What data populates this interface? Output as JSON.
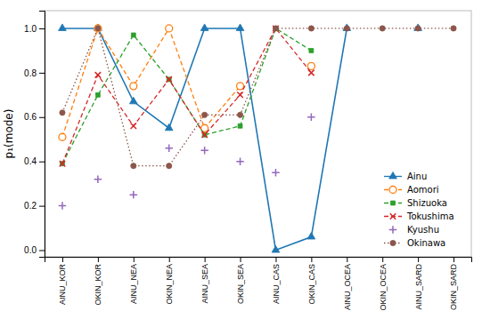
{
  "chart_data": {
    "type": "line",
    "y_label": "p₁(mode)",
    "categories": [
      "AINU_KOR",
      "OKIN_KOR",
      "AINU_NEA",
      "OKIN_NEA",
      "AINU_SEA",
      "OKIN_SEA",
      "AINU_CAS",
      "OKIN_CAS",
      "AINU_OCEA",
      "OKIN_OCEA",
      "AINU_SARD",
      "OKIN_SARD"
    ],
    "series": [
      {
        "name": "Ainu",
        "marker": "triangle",
        "line_style": "solid",
        "values": [
          1.0,
          1.0,
          0.67,
          0.55,
          1.0,
          1.0,
          0.0,
          0.06,
          1.0,
          null,
          1.0,
          null
        ]
      },
      {
        "name": "Aomori",
        "marker": "open-circle",
        "line_style": "dashed",
        "values": [
          0.51,
          1.0,
          0.74,
          1.0,
          0.55,
          0.74,
          null,
          0.83,
          null,
          null,
          null,
          null
        ]
      },
      {
        "name": "Shizuoka",
        "marker": "square",
        "line_style": "dashed",
        "values": [
          0.39,
          0.7,
          0.97,
          0.77,
          0.52,
          0.56,
          1.0,
          0.9,
          null,
          null,
          null,
          null
        ]
      },
      {
        "name": "Tokushima",
        "marker": "x",
        "line_style": "dashed",
        "values": [
          0.39,
          0.79,
          0.56,
          0.77,
          0.52,
          0.7,
          1.0,
          0.8,
          null,
          null,
          null,
          null
        ]
      },
      {
        "name": "Kyushu",
        "marker": "plus",
        "line_style": "none",
        "values": [
          0.2,
          0.32,
          0.25,
          0.46,
          0.45,
          0.4,
          0.35,
          0.6,
          null,
          null,
          null,
          null
        ]
      },
      {
        "name": "Okinawa",
        "marker": "circle",
        "line_style": "dotted",
        "values": [
          0.62,
          1.0,
          0.38,
          0.38,
          0.61,
          0.61,
          1.0,
          1.0,
          1.0,
          1.0,
          1.0,
          1.0
        ]
      }
    ],
    "ylim": [
      -0.03,
      1.08
    ],
    "yticks": [
      {
        "value": 0.0,
        "label": "0.0"
      },
      0.2,
      0.4,
      0.6,
      0.8,
      {
        "value": 1.0,
        "label": "1.0"
      }
    ],
    "grid": false,
    "legend": "lower right"
  }
}
